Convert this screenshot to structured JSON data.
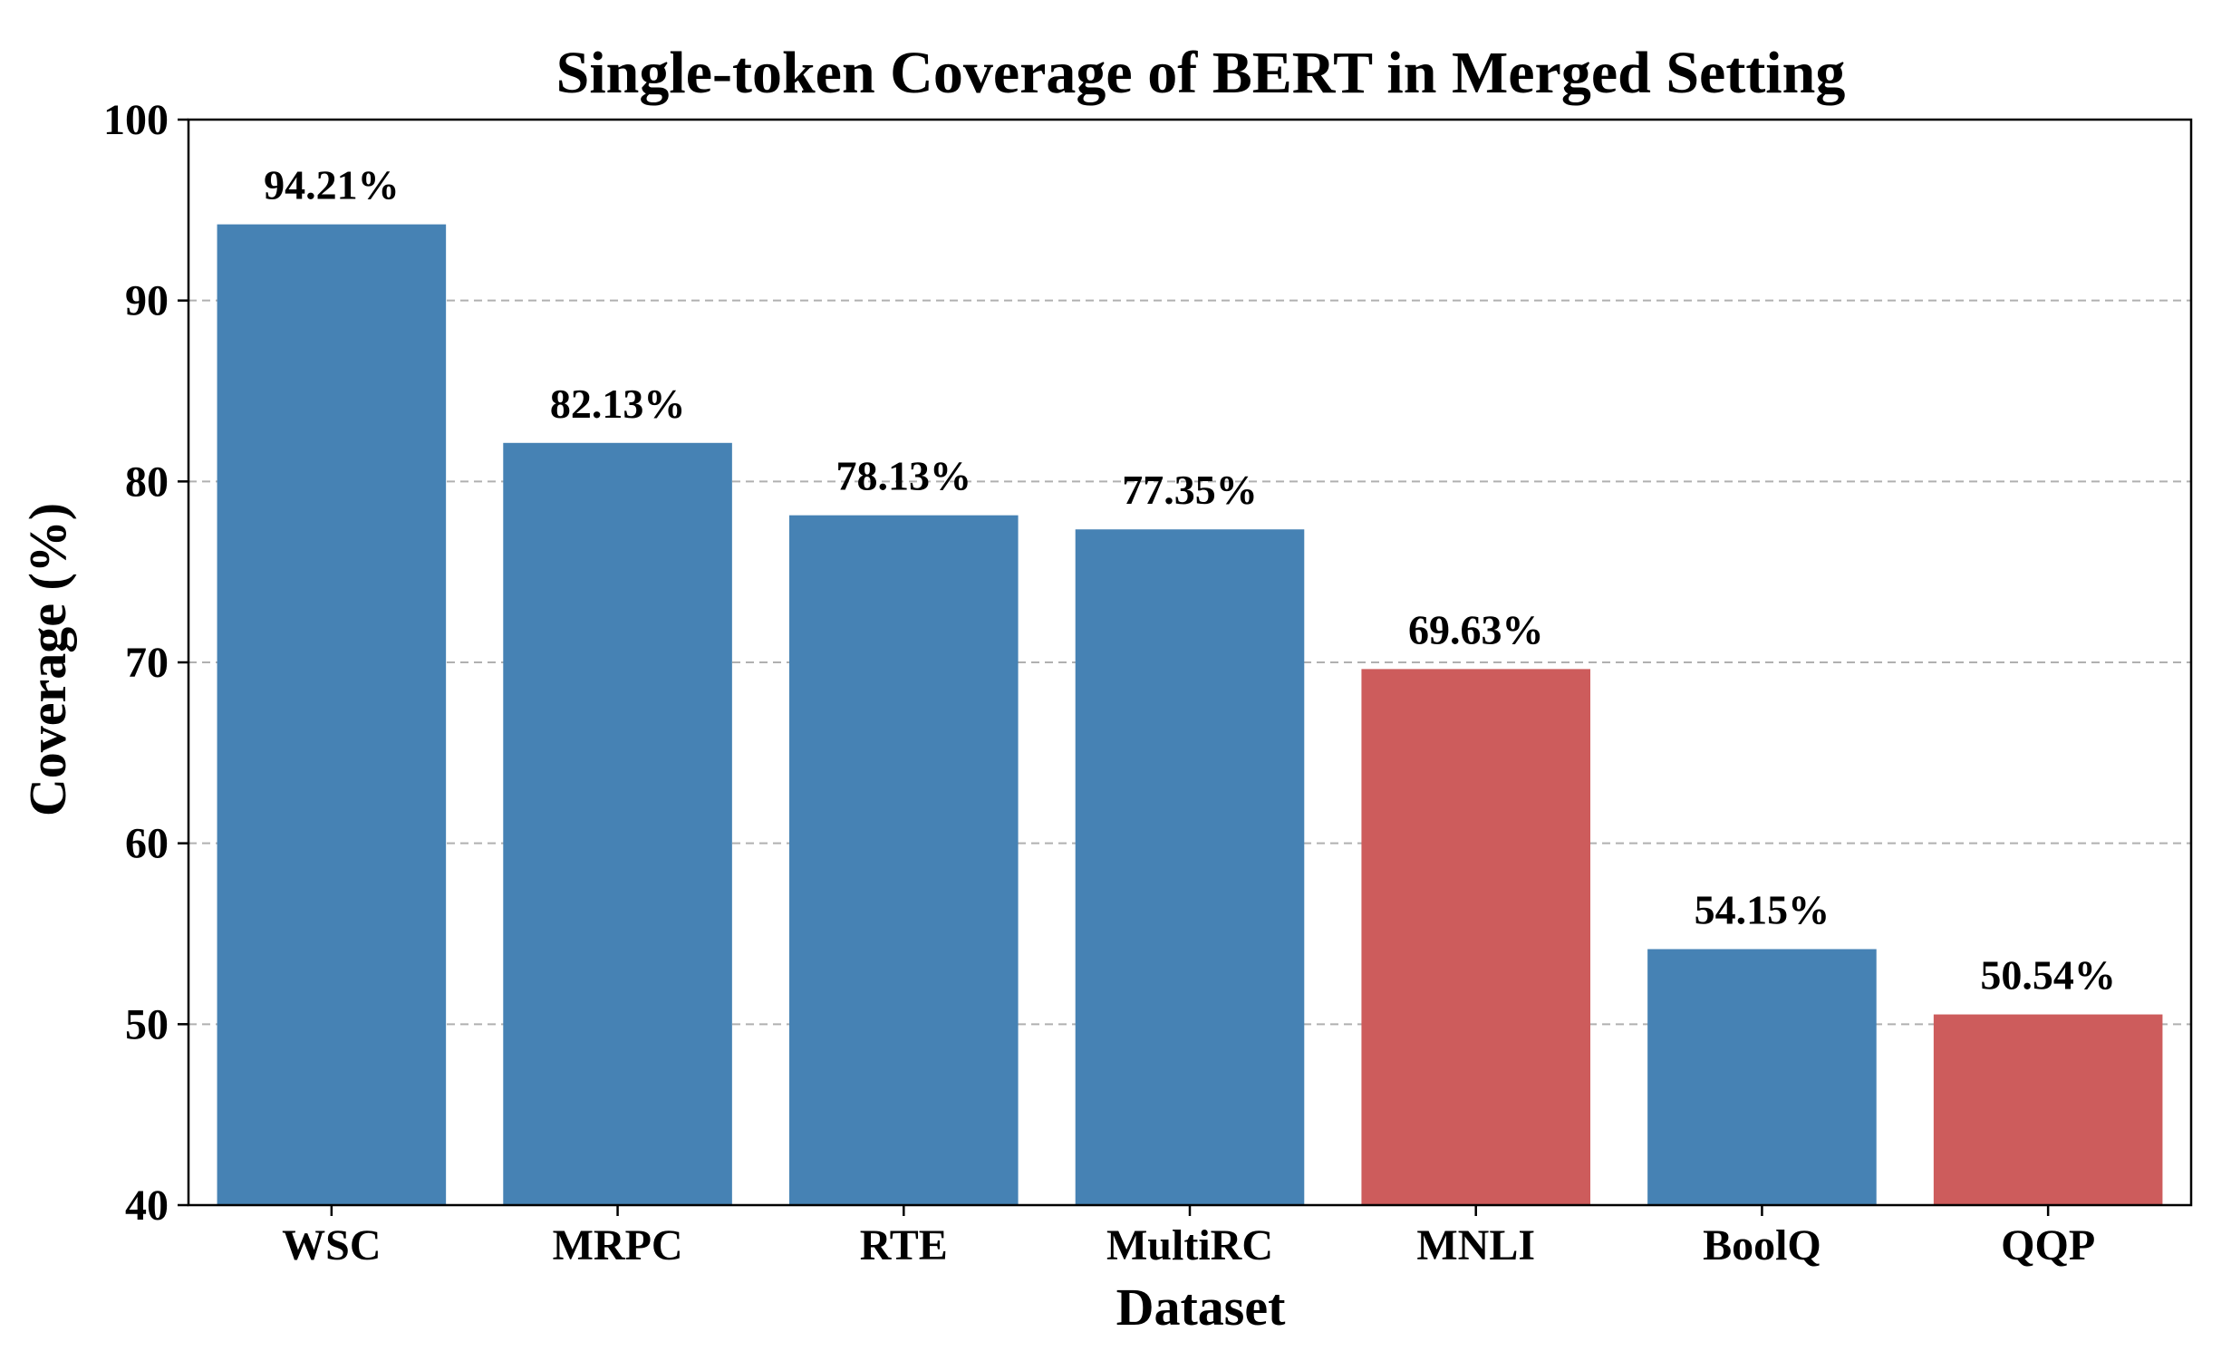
{
  "chart_data": {
    "type": "bar",
    "title": "Single-token Coverage of BERT in Merged Setting",
    "xlabel": "Dataset",
    "ylabel": "Coverage (%)",
    "ylim": [
      40,
      100
    ],
    "yticks": [
      40,
      50,
      60,
      70,
      80,
      90,
      100
    ],
    "grid": true,
    "categories": [
      "WSC",
      "MRPC",
      "RTE",
      "MultiRC",
      "MNLI",
      "BoolQ",
      "QQP"
    ],
    "values": [
      94.21,
      82.13,
      78.13,
      77.35,
      69.63,
      54.15,
      50.54
    ],
    "data_labels": [
      "94.21%",
      "82.13%",
      "78.13%",
      "77.35%",
      "69.63%",
      "54.15%",
      "50.54%"
    ],
    "bar_colors": [
      "#4682b4",
      "#4682b4",
      "#4682b4",
      "#4682b4",
      "#cd5c5c",
      "#4682b4",
      "#cd5c5c"
    ]
  }
}
